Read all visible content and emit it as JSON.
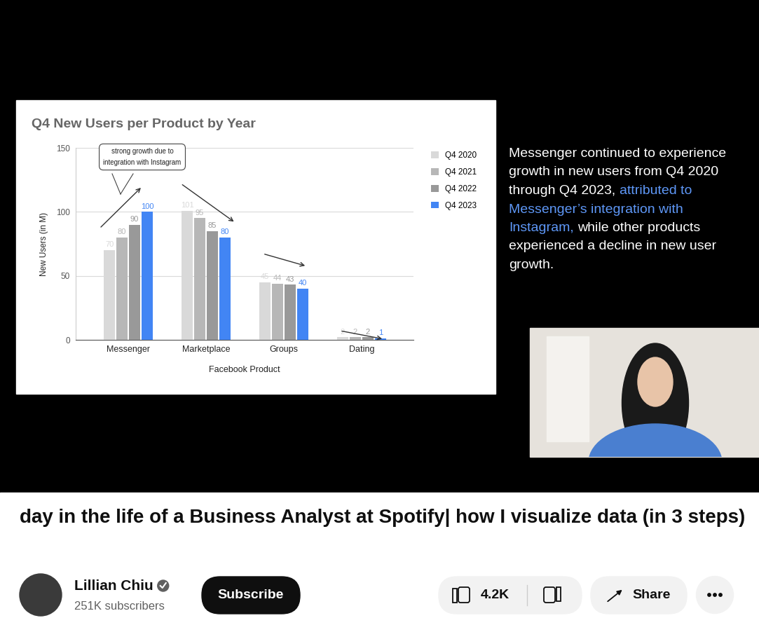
{
  "chart_data": {
    "type": "bar",
    "title": "Q4 New Users per Product by Year",
    "x_label": "Facebook Product",
    "y_label": "New Users (in M)",
    "categories": [
      "Messenger",
      "Marketplace",
      "Groups",
      "Dating"
    ],
    "series": [
      {
        "name": "Q4 2020",
        "color": "#d9d9d9",
        "values": [
          70,
          101,
          45,
          2
        ]
      },
      {
        "name": "Q4 2021",
        "color": "#b7b7b7",
        "values": [
          80,
          95,
          44,
          2
        ]
      },
      {
        "name": "Q4 2022",
        "color": "#999999",
        "values": [
          90,
          85,
          43,
          2
        ]
      },
      {
        "name": "Q4 2023",
        "color": "#4285f4",
        "values": [
          100,
          80,
          40,
          1
        ]
      }
    ],
    "ylim": [
      0,
      150
    ],
    "yticks": [
      0,
      50,
      100,
      150
    ],
    "grid": true,
    "legend": "right",
    "data_labels": true,
    "annotations": [
      "strong growth due to\nintegration with Instagram"
    ]
  },
  "side_text": {
    "lines": [
      [
        {
          "text": "Messenger continued to experience",
          "color": "#ffffff"
        }
      ],
      [
        {
          "text": "growth in new users from Q4 2020",
          "color": "#ffffff"
        }
      ],
      [
        {
          "text": "through Q4 2023,",
          "color": "#ffffff"
        },
        {
          "text": "attributed to",
          "color": "#5e97f6"
        }
      ],
      [
        {
          "text": "Messenger’s integration with",
          "color": "#5e97f6"
        }
      ],
      [
        {
          "text": "Instagram,",
          "color": "#5e97f6"
        },
        {
          "text": "while other products",
          "color": "#ffffff"
        }
      ],
      [
        {
          "text": "experienced a decline in new user",
          "color": "#ffffff"
        }
      ],
      [
        {
          "text": "growth.",
          "color": "#ffffff"
        }
      ]
    ]
  },
  "video": {
    "title": "day in the life of a Business Analyst at Spotify| how I visualize data (in 3 steps)",
    "channel": "Lillian Chiu",
    "subscribers": "251K subscribers",
    "subscribe": "Subscribe",
    "likes": "4.2K",
    "share": "Share"
  }
}
